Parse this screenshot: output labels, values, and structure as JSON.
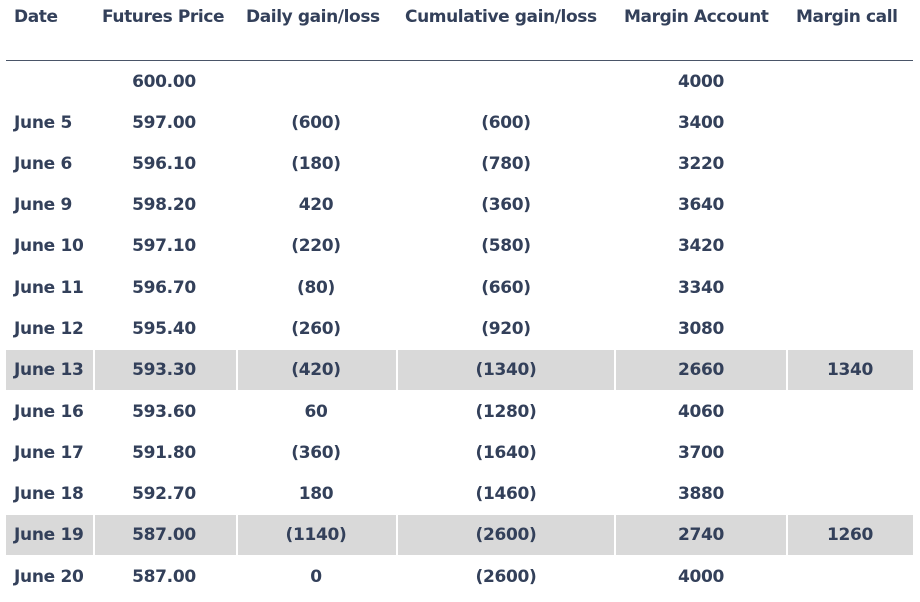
{
  "headers": [
    "Date",
    "Futures Price",
    "Daily gain/loss",
    "Cumulative gain/loss",
    "Margin Account",
    "Margin call"
  ],
  "rows": [
    [
      "",
      "600.00",
      "",
      "",
      "4000",
      ""
    ],
    [
      "June 5",
      "597.00",
      "(600)",
      "(600)",
      "3400",
      ""
    ],
    [
      "June 6",
      "596.10",
      "(180)",
      "(780)",
      "3220",
      ""
    ],
    [
      "June 9",
      "598.20",
      "420",
      "(360)",
      "3640",
      ""
    ],
    [
      "June 10",
      "597.10",
      "(220)",
      "(580)",
      "3420",
      ""
    ],
    [
      "June 11",
      "596.70",
      "(80)",
      "(660)",
      "3340",
      ""
    ],
    [
      "June 12",
      "595.40",
      "(260)",
      "(920)",
      "3080",
      ""
    ],
    [
      "June 13",
      "593.30",
      "(420)",
      "(1340)",
      "2660",
      "1340"
    ],
    [
      "June 16",
      "593.60",
      "60",
      "(1280)",
      "4060",
      ""
    ],
    [
      "June 17",
      "591.80",
      "(360)",
      "(1640)",
      "3700",
      ""
    ],
    [
      "June 18",
      "592.70",
      "180",
      "(1460)",
      "3880",
      ""
    ],
    [
      "June 19",
      "587.00",
      "(1140)",
      "(2600)",
      "2740",
      "1260"
    ],
    [
      "June 20",
      "587.00",
      "0",
      "(2600)",
      "4000",
      ""
    ]
  ],
  "colors": {
    "text": "#33405a",
    "highlight": "#d9d9d9",
    "rule": "#4a5568"
  }
}
